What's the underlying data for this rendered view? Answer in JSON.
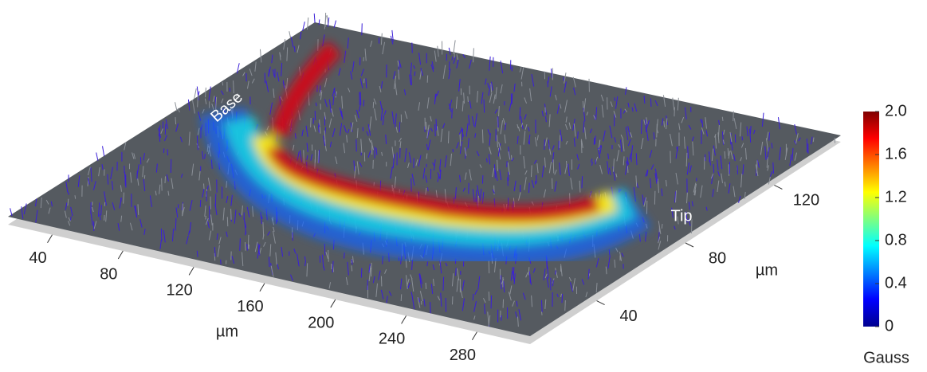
{
  "chart_data": {
    "type": "quiver3d",
    "xlabel": "µm",
    "ylabel": "µm",
    "xlim": [
      15,
      310
    ],
    "xticks": [
      40,
      80,
      120,
      160,
      200,
      240,
      280
    ],
    "ylim": [
      10,
      150
    ],
    "yticks": [
      40,
      80,
      120
    ],
    "colorbar": {
      "label": "Gauss",
      "colormap": "jet",
      "lim": [
        0,
        2
      ],
      "ticks": [
        0,
        0.4,
        0.8,
        1.2,
        1.6,
        {
          "value": 2,
          "label": "2.0"
        }
      ]
    },
    "annotations": [
      "Base",
      "Tip"
    ]
  }
}
